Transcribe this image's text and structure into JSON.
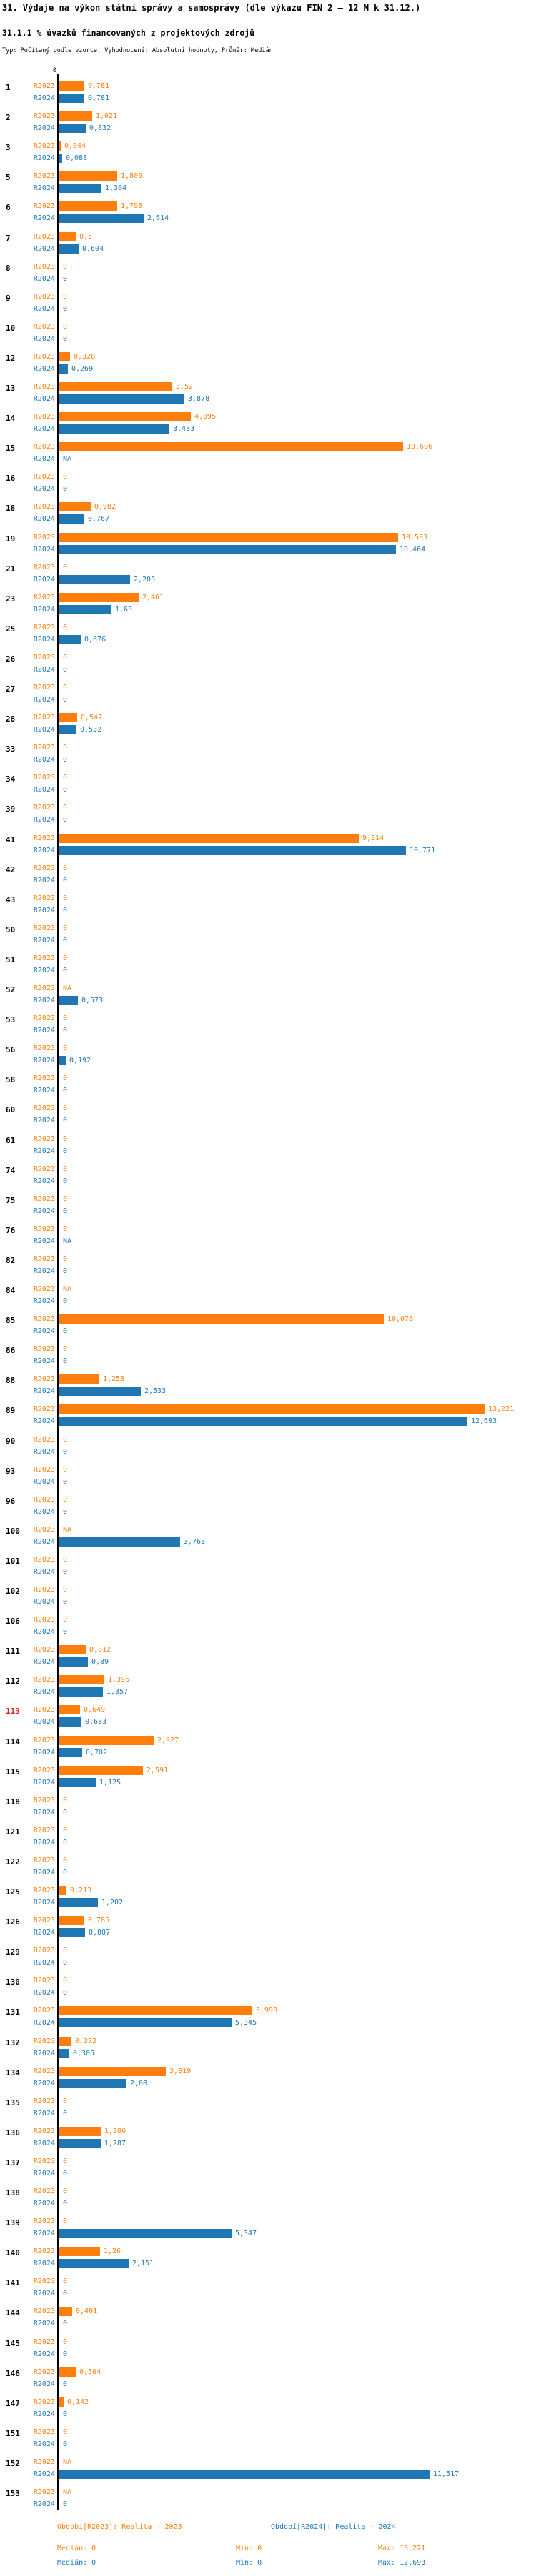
{
  "header": {
    "title": "31. Výdaje na výkon státní správy a samosprávy (dle výkazu FIN 2 – 12 M k 31.12.)",
    "subtitle": "31.1.1 % úvazků financovaných z projektových zdrojů",
    "meta": "Typ: Počítaný podle vzorce, Vyhodnocení: Absolutní hodnoty, Průměr: Medián"
  },
  "chart_data": {
    "type": "bar",
    "orientation": "horizontal",
    "axis": {
      "tick_label": "0",
      "min": 0,
      "max_value_shown": 13.221,
      "grid": false
    },
    "value_format": "czech decimal comma, NA = not available",
    "series": [
      {
        "key": "r2023",
        "label": "R2023",
        "color": "#ff7f0e"
      },
      {
        "key": "r2024",
        "label": "R2024",
        "color": "#1f77b4"
      }
    ],
    "highlight_row_id": "113",
    "highlight_color": "#d62728",
    "rows": [
      {
        "id": "1",
        "r2023": "0,781",
        "r2024": "0,781"
      },
      {
        "id": "2",
        "r2023": "1,021",
        "r2024": "0,832"
      },
      {
        "id": "3",
        "r2023": "0,044",
        "r2024": "0,088"
      },
      {
        "id": "5",
        "r2023": "1,809",
        "r2024": "1,304"
      },
      {
        "id": "6",
        "r2023": "1,793",
        "r2024": "2,614"
      },
      {
        "id": "7",
        "r2023": "0,5",
        "r2024": "0,604"
      },
      {
        "id": "8",
        "r2023": "0",
        "r2024": "0"
      },
      {
        "id": "9",
        "r2023": "0",
        "r2024": "0"
      },
      {
        "id": "10",
        "r2023": "0",
        "r2024": "0"
      },
      {
        "id": "12",
        "r2023": "0,328",
        "r2024": "0,269"
      },
      {
        "id": "13",
        "r2023": "3,52",
        "r2024": "3,878"
      },
      {
        "id": "14",
        "r2023": "4,095",
        "r2024": "3,433"
      },
      {
        "id": "15",
        "r2023": "10,696",
        "r2024": "NA"
      },
      {
        "id": "16",
        "r2023": "0",
        "r2024": "0"
      },
      {
        "id": "18",
        "r2023": "0,982",
        "r2024": "0,767"
      },
      {
        "id": "19",
        "r2023": "10,533",
        "r2024": "10,464"
      },
      {
        "id": "21",
        "r2023": "0",
        "r2024": "2,203"
      },
      {
        "id": "23",
        "r2023": "2,461",
        "r2024": "1,63"
      },
      {
        "id": "25",
        "r2023": "0",
        "r2024": "0,676"
      },
      {
        "id": "26",
        "r2023": "0",
        "r2024": "0"
      },
      {
        "id": "27",
        "r2023": "0",
        "r2024": "0"
      },
      {
        "id": "28",
        "r2023": "0,547",
        "r2024": "0,532"
      },
      {
        "id": "33",
        "r2023": "0",
        "r2024": "0"
      },
      {
        "id": "34",
        "r2023": "0",
        "r2024": "0"
      },
      {
        "id": "39",
        "r2023": "0",
        "r2024": "0"
      },
      {
        "id": "41",
        "r2023": "9,314",
        "r2024": "10,771"
      },
      {
        "id": "42",
        "r2023": "0",
        "r2024": "0"
      },
      {
        "id": "43",
        "r2023": "0",
        "r2024": "0"
      },
      {
        "id": "50",
        "r2023": "0",
        "r2024": "0"
      },
      {
        "id": "51",
        "r2023": "0",
        "r2024": "0"
      },
      {
        "id": "52",
        "r2023": "NA",
        "r2024": "0,573"
      },
      {
        "id": "53",
        "r2023": "0",
        "r2024": "0"
      },
      {
        "id": "56",
        "r2023": "0",
        "r2024": "0,192"
      },
      {
        "id": "58",
        "r2023": "0",
        "r2024": "0"
      },
      {
        "id": "60",
        "r2023": "0",
        "r2024": "0"
      },
      {
        "id": "61",
        "r2023": "0",
        "r2024": "0"
      },
      {
        "id": "74",
        "r2023": "0",
        "r2024": "0"
      },
      {
        "id": "75",
        "r2023": "0",
        "r2024": "0"
      },
      {
        "id": "76",
        "r2023": "0",
        "r2024": "NA"
      },
      {
        "id": "82",
        "r2023": "0",
        "r2024": "0"
      },
      {
        "id": "84",
        "r2023": "NA",
        "r2024": "0"
      },
      {
        "id": "85",
        "r2023": "10,078",
        "r2024": "0"
      },
      {
        "id": "86",
        "r2023": "0",
        "r2024": "0"
      },
      {
        "id": "88",
        "r2023": "1,253",
        "r2024": "2,533"
      },
      {
        "id": "89",
        "r2023": "13,221",
        "r2024": "12,693"
      },
      {
        "id": "90",
        "r2023": "0",
        "r2024": "0"
      },
      {
        "id": "93",
        "r2023": "0",
        "r2024": "0"
      },
      {
        "id": "96",
        "r2023": "0",
        "r2024": "0"
      },
      {
        "id": "100",
        "r2023": "NA",
        "r2024": "3,763"
      },
      {
        "id": "101",
        "r2023": "0",
        "r2024": "0"
      },
      {
        "id": "102",
        "r2023": "0",
        "r2024": "0"
      },
      {
        "id": "106",
        "r2023": "0",
        "r2024": "0"
      },
      {
        "id": "111",
        "r2023": "0,812",
        "r2024": "0,89"
      },
      {
        "id": "112",
        "r2023": "1,396",
        "r2024": "1,357"
      },
      {
        "id": "113",
        "r2023": "0,649",
        "r2024": "0,683"
      },
      {
        "id": "114",
        "r2023": "2,927",
        "r2024": "0,702"
      },
      {
        "id": "115",
        "r2023": "2,591",
        "r2024": "1,125"
      },
      {
        "id": "118",
        "r2023": "0",
        "r2024": "0"
      },
      {
        "id": "121",
        "r2023": "0",
        "r2024": "0"
      },
      {
        "id": "122",
        "r2023": "0",
        "r2024": "0"
      },
      {
        "id": "125",
        "r2023": "0,213",
        "r2024": "1,202"
      },
      {
        "id": "126",
        "r2023": "0,785",
        "r2024": "0,807"
      },
      {
        "id": "129",
        "r2023": "0",
        "r2024": "0"
      },
      {
        "id": "130",
        "r2023": "0",
        "r2024": "0"
      },
      {
        "id": "131",
        "r2023": "5,998",
        "r2024": "5,345"
      },
      {
        "id": "132",
        "r2023": "0,372",
        "r2024": "0,305"
      },
      {
        "id": "134",
        "r2023": "3,319",
        "r2024": "2,08"
      },
      {
        "id": "135",
        "r2023": "0",
        "r2024": "0"
      },
      {
        "id": "136",
        "r2023": "1,286",
        "r2024": "1,287"
      },
      {
        "id": "137",
        "r2023": "0",
        "r2024": "0"
      },
      {
        "id": "138",
        "r2023": "0",
        "r2024": "0"
      },
      {
        "id": "139",
        "r2023": "0",
        "r2024": "5,347"
      },
      {
        "id": "140",
        "r2023": "1,26",
        "r2024": "2,151"
      },
      {
        "id": "141",
        "r2023": "0",
        "r2024": "0"
      },
      {
        "id": "144",
        "r2023": "0,401",
        "r2024": "0"
      },
      {
        "id": "145",
        "r2023": "0",
        "r2024": "0"
      },
      {
        "id": "146",
        "r2023": "0,504",
        "r2024": "0"
      },
      {
        "id": "147",
        "r2023": "0,142",
        "r2024": "0"
      },
      {
        "id": "151",
        "r2023": "0",
        "r2024": "0"
      },
      {
        "id": "152",
        "r2023": "NA",
        "r2024": "11,517"
      },
      {
        "id": "153",
        "r2023": "NA",
        "r2024": "0"
      }
    ]
  },
  "footer": {
    "period_2023": "Období[R2023]: Realita - 2023",
    "period_2024": "Období[R2024]: Realita - 2024",
    "stats_2023": {
      "median": "Medián: 0",
      "min": "Min: 0",
      "max": "Max: 13,221"
    },
    "stats_2024": {
      "median": "Medián: 0",
      "min": "Min: 0",
      "max": "Max: 12,693"
    }
  }
}
